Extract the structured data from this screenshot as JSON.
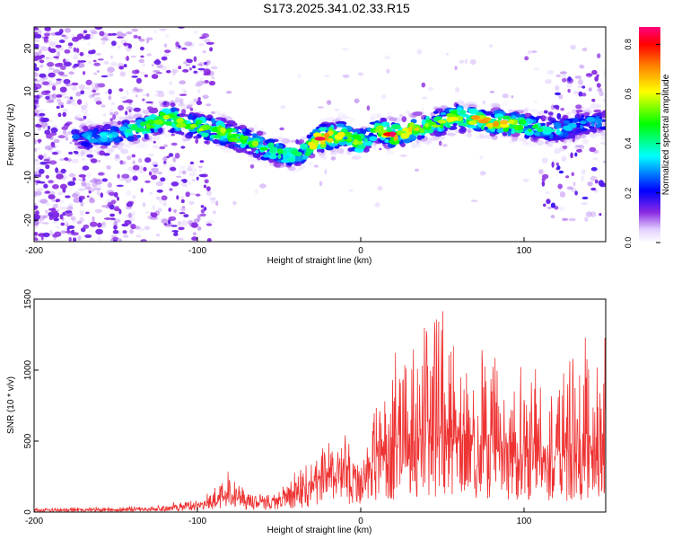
{
  "figure_title": "S173.2025.341.02.33.R15",
  "chart_data": [
    {
      "type": "heatmap",
      "title": "S173.2025.341.02.33.R15",
      "xlabel": "Height of straight line (km)",
      "ylabel": "Frequency (Hz)",
      "xlim": [
        -200,
        150
      ],
      "ylim": [
        -25,
        25
      ],
      "xticks": [
        -200,
        -100,
        0,
        100
      ],
      "xtick_labels": [
        "-200",
        "-100",
        "0",
        "100"
      ],
      "yticks": [
        -20,
        -10,
        0,
        10,
        20
      ],
      "ytick_labels": [
        "-20",
        "-10",
        "0",
        "10",
        "20"
      ],
      "colorbar": {
        "label": "Normalized spectral amplitude",
        "range": [
          0,
          0.87
        ],
        "ticks": [
          0.0,
          0.2,
          0.4,
          0.6,
          0.8
        ],
        "tick_labels": [
          "0.0",
          "0.2",
          "0.4",
          "0.6",
          "0.8"
        ],
        "colormap": [
          "#ffffff",
          "#e2d0ff",
          "#8a2be2",
          "#0000ff",
          "#00ffff",
          "#00ff00",
          "#ffff00",
          "#ff8000",
          "#ff0000",
          "#ff0080"
        ]
      },
      "ridge": {
        "description": "dominant frequency ridge vs height",
        "x": [
          -170,
          -150,
          -130,
          -120,
          -100,
          -80,
          -60,
          -45,
          -35,
          -25,
          -10,
          0,
          10,
          20,
          40,
          60,
          80,
          100,
          120,
          140
        ],
        "frequency": [
          -1,
          0,
          2,
          4,
          2,
          0,
          -3,
          -5,
          -4,
          -1,
          0,
          -2,
          1,
          0,
          2,
          4,
          3,
          2,
          1,
          3
        ],
        "peak_amplitude": [
          0.3,
          0.35,
          0.5,
          0.55,
          0.6,
          0.55,
          0.5,
          0.45,
          0.45,
          0.85,
          0.6,
          0.55,
          0.5,
          0.8,
          0.55,
          0.6,
          0.7,
          0.5,
          0.35,
          0.3
        ]
      }
    },
    {
      "type": "line",
      "xlabel": "Height of straight line (km)",
      "ylabel": "SNR (10 * v/v)",
      "xlim": [
        -200,
        150
      ],
      "ylim": [
        0,
        1500
      ],
      "xticks": [
        -200,
        -100,
        0,
        100
      ],
      "xtick_labels": [
        "-200",
        "-100",
        "0",
        "100"
      ],
      "yticks": [
        0,
        500,
        1000,
        1500
      ],
      "ytick_labels": [
        "0",
        "500",
        "1000",
        "1500"
      ],
      "line_color": "#ee3333",
      "envelope": {
        "x": [
          -200,
          -150,
          -120,
          -100,
          -90,
          -82,
          -70,
          -60,
          -50,
          -40,
          -30,
          -20,
          -10,
          0,
          10,
          20,
          30,
          40,
          50,
          55,
          70,
          80,
          90,
          100,
          110,
          120,
          130,
          140,
          150
        ],
        "max": [
          30,
          40,
          50,
          110,
          160,
          300,
          150,
          140,
          200,
          300,
          370,
          500,
          550,
          400,
          800,
          1100,
          1350,
          1300,
          1500,
          1450,
          1200,
          1100,
          1050,
          1100,
          1000,
          950,
          1150,
          1300,
          1250
        ],
        "typical": [
          12,
          18,
          25,
          50,
          80,
          120,
          70,
          60,
          90,
          140,
          180,
          250,
          280,
          200,
          380,
          450,
          500,
          480,
          520,
          500,
          460,
          420,
          400,
          420,
          380,
          360,
          400,
          450,
          430
        ]
      }
    }
  ]
}
